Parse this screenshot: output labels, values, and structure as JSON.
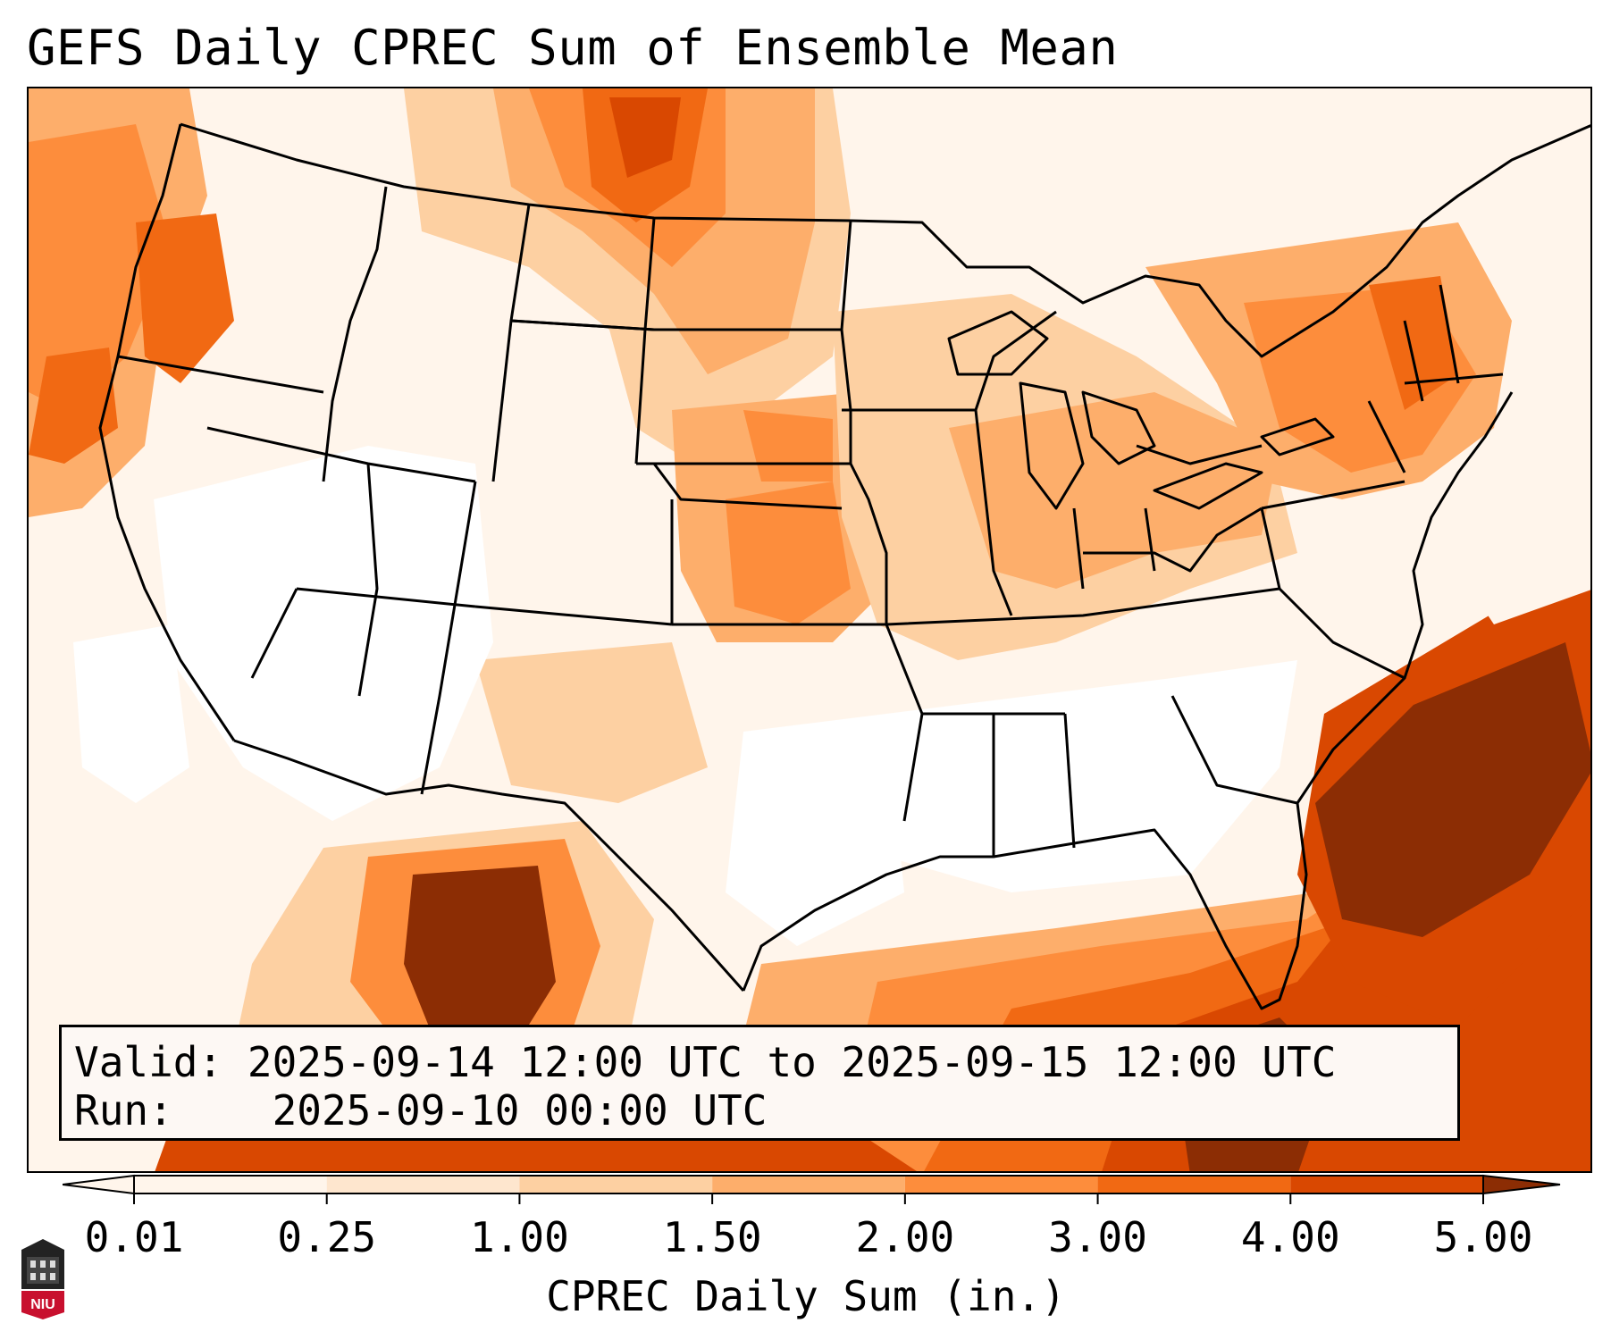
{
  "title": "GEFS Daily CPREC Sum of Ensemble Mean",
  "info": {
    "valid_label": "Valid:",
    "valid_value": "2025-09-14 12:00 UTC to 2025-09-15 12:00 UTC",
    "run_label": "Run:",
    "run_value": "2025-09-10 00:00 UTC"
  },
  "colorbar": {
    "label": "CPREC Daily Sum (in.)",
    "ticks": [
      "0.01",
      "0.25",
      "1.00",
      "1.50",
      "2.00",
      "3.00",
      "4.00",
      "5.00"
    ],
    "colors": [
      "#fff5eb",
      "#fee6ce",
      "#fdd0a2",
      "#fdae6b",
      "#fd8d3c",
      "#f16913",
      "#d94801",
      "#8c2d04"
    ],
    "extend": "both"
  },
  "map": {
    "region": "CONUS",
    "colors": {
      "none": "#ffffff",
      "very_light": "#fff5eb",
      "light": "#fee6ce",
      "light_mid": "#fdd0a2",
      "mid": "#fdae6b",
      "mid_high": "#fd8d3c",
      "high": "#f16913",
      "very_high": "#d94801",
      "max": "#8c2d04"
    }
  },
  "logo": {
    "icon": "niu-logo-icon",
    "text": "NIU"
  }
}
